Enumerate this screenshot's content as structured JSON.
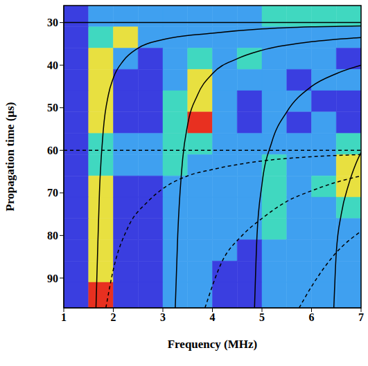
{
  "chart_data": {
    "type": "heatmap_with_curves",
    "x_label": "Frequency (MHz)",
    "y_label": "Propagation time (µs)",
    "xlim": [
      1,
      7
    ],
    "xticks": [
      1,
      2,
      3,
      4,
      5,
      6,
      7
    ],
    "ylim": [
      26,
      97
    ],
    "yticks": [
      30,
      40,
      50,
      60,
      70,
      80,
      90
    ],
    "y_reversed": true,
    "grid": false,
    "cells": {
      "x_edges": [
        1,
        1.5,
        2,
        2.5,
        3,
        3.5,
        4,
        4.5,
        5,
        5.5,
        6,
        6.5,
        7
      ],
      "y_edges": [
        26,
        31,
        36,
        41,
        46,
        51,
        56,
        61,
        66,
        71,
        76,
        81,
        86,
        91,
        97
      ],
      "values": [
        [
          1,
          2,
          2,
          2,
          2,
          2,
          2,
          2,
          3,
          3,
          3,
          3
        ],
        [
          1,
          3,
          4,
          2,
          2,
          2,
          2,
          2,
          2,
          2,
          2,
          2
        ],
        [
          1,
          4,
          2,
          1,
          2,
          3,
          2,
          3,
          2,
          2,
          2,
          1
        ],
        [
          1,
          4,
          1,
          1,
          2,
          4,
          2,
          2,
          2,
          1,
          2,
          2
        ],
        [
          1,
          4,
          1,
          1,
          3,
          4,
          2,
          1,
          2,
          2,
          1,
          1
        ],
        [
          1,
          4,
          1,
          1,
          3,
          5,
          2,
          1,
          2,
          1,
          2,
          1
        ],
        [
          1,
          3,
          2,
          2,
          3,
          3,
          2,
          2,
          2,
          2,
          2,
          3
        ],
        [
          1,
          3,
          2,
          2,
          3,
          2,
          2,
          2,
          3,
          2,
          2,
          4
        ],
        [
          1,
          4,
          1,
          1,
          2,
          2,
          2,
          2,
          3,
          2,
          3,
          4
        ],
        [
          1,
          4,
          1,
          1,
          2,
          2,
          2,
          2,
          3,
          2,
          2,
          3
        ],
        [
          1,
          4,
          1,
          1,
          2,
          2,
          2,
          2,
          3,
          2,
          2,
          2
        ],
        [
          1,
          4,
          1,
          1,
          2,
          2,
          2,
          1,
          2,
          2,
          2,
          2
        ],
        [
          1,
          4,
          1,
          1,
          2,
          2,
          1,
          1,
          2,
          2,
          2,
          2
        ],
        [
          1,
          5,
          1,
          1,
          2,
          2,
          1,
          1,
          2,
          2,
          2,
          2
        ]
      ],
      "color_range": [
        0,
        5
      ],
      "colors": [
        "#5a1fb0",
        "#3a3ee0",
        "#3fa0f0",
        "#40d8c0",
        "#e8e040",
        "#e83020"
      ]
    },
    "horizontal_lines": [
      {
        "y": 30,
        "line_style": "solid",
        "color": "#000000"
      },
      {
        "y": 60,
        "line_style": "dashed",
        "color": "#000000"
      }
    ],
    "curves": [
      {
        "line_style": "solid",
        "color": "#000000",
        "x": [
          1.65,
          1.68,
          1.72,
          1.8,
          1.9,
          2.0,
          2.2,
          2.5,
          3,
          4,
          5,
          6,
          7
        ],
        "y": [
          97,
          85,
          70,
          55,
          47,
          43,
          39,
          36,
          34,
          32.5,
          31.5,
          31,
          30.8
        ]
      },
      {
        "line_style": "solid",
        "color": "#000000",
        "x": [
          3.25,
          3.3,
          3.4,
          3.5,
          3.7,
          4,
          4.5,
          5,
          6,
          7
        ],
        "y": [
          97,
          80,
          62,
          54,
          47,
          42,
          38.5,
          36.5,
          34.5,
          33.5
        ]
      },
      {
        "line_style": "solid",
        "color": "#000000",
        "x": [
          4.85,
          4.9,
          5,
          5.2,
          5.5,
          6,
          6.5,
          7
        ],
        "y": [
          97,
          80,
          68,
          58,
          51,
          45,
          42,
          40
        ]
      },
      {
        "line_style": "solid",
        "color": "#000000",
        "x": [
          6.45,
          6.5,
          6.6,
          6.75,
          6.9,
          7
        ],
        "y": [
          97,
          84,
          75,
          68,
          63,
          60.5
        ]
      },
      {
        "line_style": "dashed",
        "color": "#000000",
        "x": [
          1.85,
          2,
          2.3,
          2.7,
          3,
          3.5,
          4,
          5,
          6,
          7
        ],
        "y": [
          97,
          88,
          78,
          72,
          69,
          66,
          64.5,
          62.5,
          61.5,
          61
        ]
      },
      {
        "line_style": "dashed",
        "color": "#000000",
        "x": [
          3.85,
          4.2,
          4.6,
          5,
          5.5,
          6,
          6.5,
          7
        ],
        "y": [
          97,
          86,
          80,
          76,
          72,
          69.5,
          67.5,
          66
        ]
      },
      {
        "line_style": "dashed",
        "color": "#000000",
        "x": [
          5.75,
          6,
          6.5,
          7
        ],
        "y": [
          97,
          92,
          84,
          79
        ]
      }
    ]
  }
}
